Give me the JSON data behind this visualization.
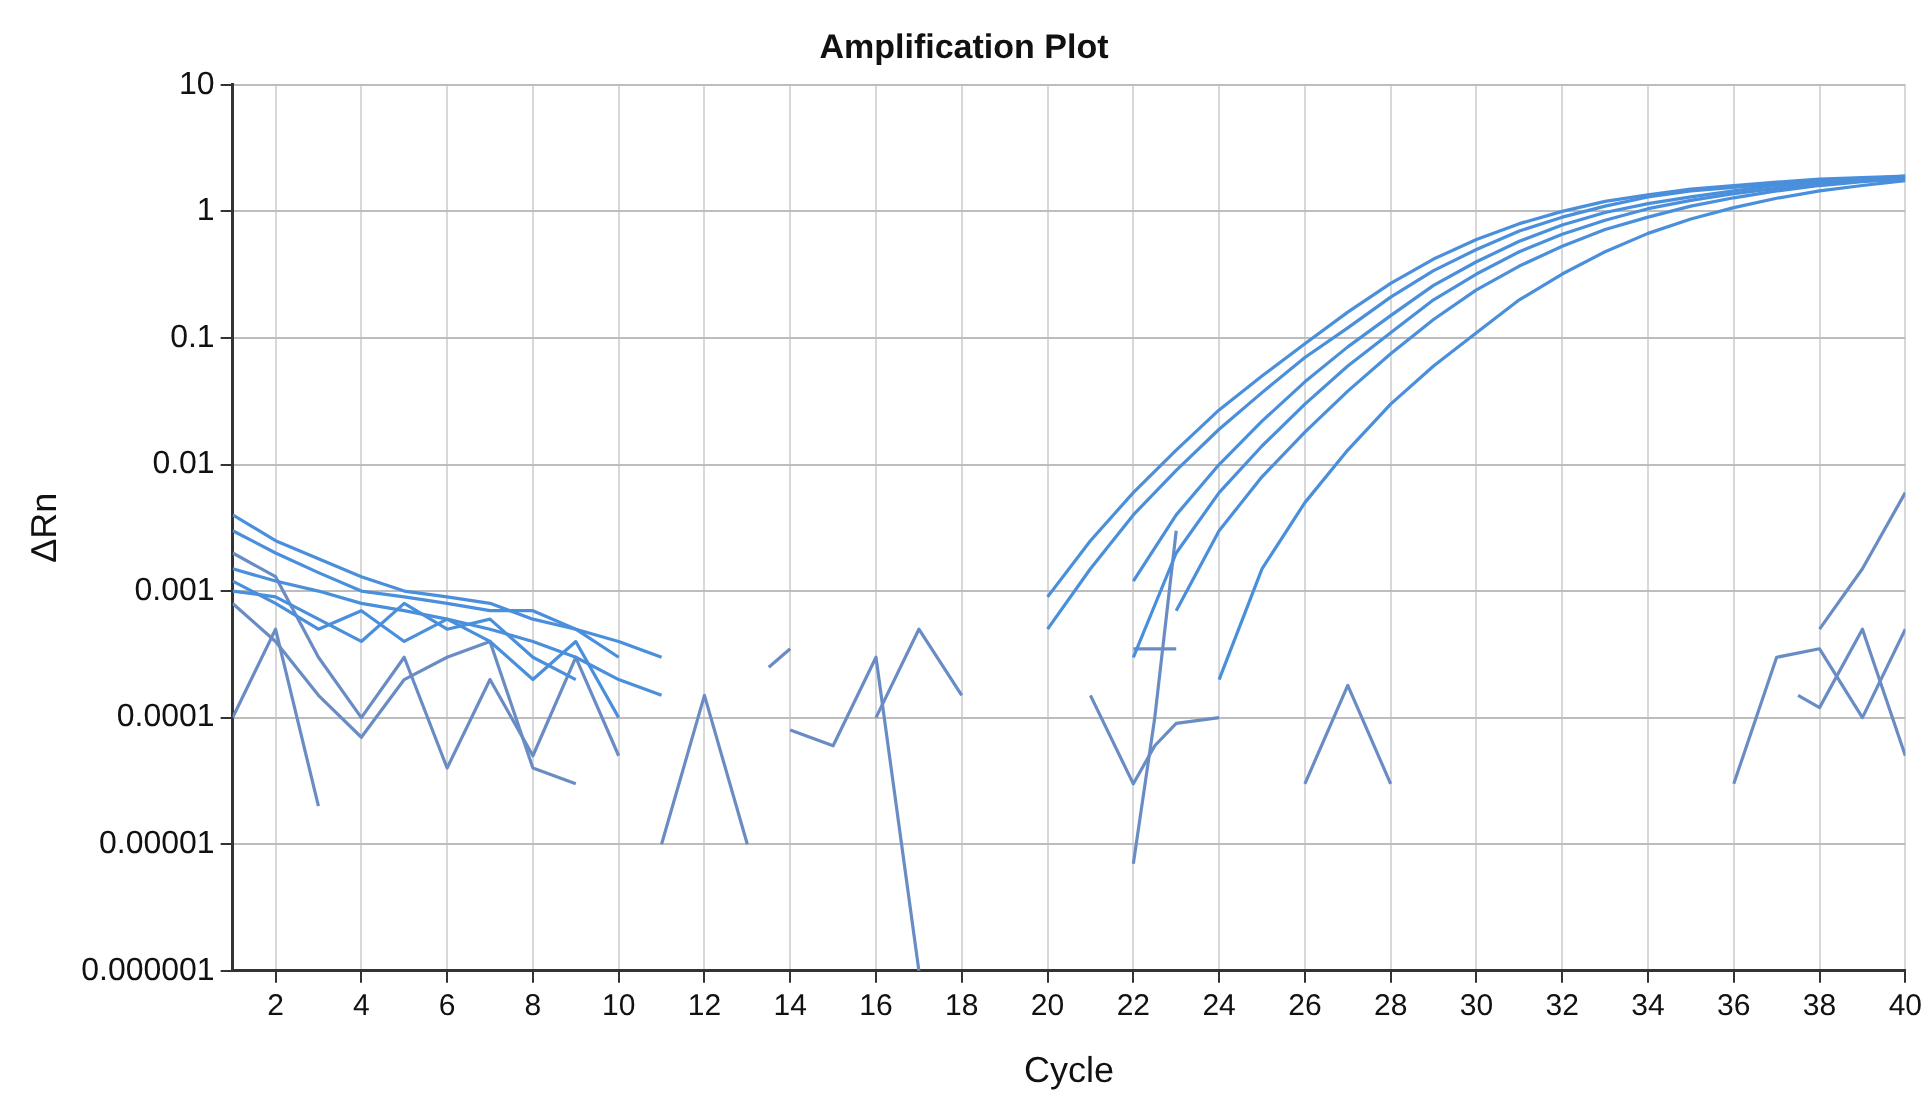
{
  "chart_data": {
    "type": "line",
    "title": "Amplification Plot",
    "xlabel": "Cycle",
    "ylabel": "ΔRn",
    "log": "y",
    "grid": true,
    "legend": false,
    "marker": "none",
    "line_style": "solid",
    "xlim": [
      1,
      40
    ],
    "xticks": [
      2,
      4,
      6,
      8,
      10,
      12,
      14,
      16,
      18,
      20,
      22,
      24,
      26,
      28,
      30,
      32,
      34,
      36,
      38,
      40
    ],
    "ylim": [
      1e-06,
      10
    ],
    "yticks": [
      {
        "value": 1e-06,
        "label": "0.000001"
      },
      {
        "value": 1e-05,
        "label": "0.00001"
      },
      {
        "value": 0.0001,
        "label": "0.0001"
      },
      {
        "value": 0.001,
        "label": "0.001"
      },
      0.01,
      0.1,
      1,
      10
    ],
    "series": [
      {
        "color": "#4a8fdc",
        "x": [
          20,
          21,
          22,
          23,
          24,
          25,
          26,
          27,
          28,
          29,
          30,
          31,
          32,
          33,
          34,
          35,
          36,
          37,
          38,
          39,
          40
        ],
        "values": [
          0.0009,
          0.0025,
          0.006,
          0.013,
          0.027,
          0.05,
          0.09,
          0.16,
          0.27,
          0.42,
          0.6,
          0.8,
          1.0,
          1.2,
          1.35,
          1.5,
          1.6,
          1.7,
          1.8,
          1.85,
          1.9
        ]
      },
      {
        "color": "#4a8fdc",
        "x": [
          20,
          21,
          22,
          23,
          24,
          25,
          26,
          27,
          28,
          29,
          30,
          31,
          32,
          33,
          34,
          35,
          36,
          37,
          38,
          39,
          40
        ],
        "values": [
          0.0005,
          0.0015,
          0.004,
          0.009,
          0.019,
          0.037,
          0.07,
          0.12,
          0.21,
          0.34,
          0.5,
          0.7,
          0.9,
          1.1,
          1.3,
          1.45,
          1.55,
          1.65,
          1.75,
          1.8,
          1.9
        ]
      },
      {
        "color": "#4a8fdc",
        "x": [
          22,
          23,
          24,
          25,
          26,
          27,
          28,
          29,
          30,
          31,
          32,
          33,
          34,
          35,
          36,
          37,
          38,
          39,
          40
        ],
        "values": [
          0.0012,
          0.004,
          0.01,
          0.022,
          0.045,
          0.085,
          0.15,
          0.26,
          0.4,
          0.58,
          0.78,
          0.98,
          1.15,
          1.3,
          1.45,
          1.6,
          1.7,
          1.8,
          1.85
        ]
      },
      {
        "color": "#4a8fdc",
        "x": [
          22,
          23,
          24,
          25,
          26,
          27,
          28,
          29,
          30,
          31,
          32,
          33,
          34,
          35,
          36,
          37,
          38,
          39,
          40
        ],
        "values": [
          0.0003,
          0.002,
          0.006,
          0.014,
          0.03,
          0.06,
          0.11,
          0.2,
          0.32,
          0.48,
          0.66,
          0.85,
          1.05,
          1.22,
          1.38,
          1.52,
          1.65,
          1.75,
          1.85
        ]
      },
      {
        "color": "#4a8fdc",
        "x": [
          23,
          24,
          25,
          26,
          27,
          28,
          29,
          30,
          31,
          32,
          33,
          34,
          35,
          36,
          37,
          38,
          39,
          40
        ],
        "values": [
          0.0007,
          0.003,
          0.008,
          0.018,
          0.038,
          0.075,
          0.14,
          0.24,
          0.37,
          0.53,
          0.72,
          0.9,
          1.1,
          1.28,
          1.45,
          1.6,
          1.72,
          1.8
        ]
      },
      {
        "color": "#4a8fdc",
        "x": [
          24,
          25,
          26,
          27,
          28,
          29,
          30,
          31,
          32,
          33,
          34,
          35,
          36,
          37,
          38,
          39,
          40
        ],
        "values": [
          0.0002,
          0.0015,
          0.005,
          0.013,
          0.03,
          0.06,
          0.11,
          0.2,
          0.32,
          0.48,
          0.67,
          0.87,
          1.07,
          1.27,
          1.45,
          1.6,
          1.75
        ]
      },
      {
        "color": "#4a8fdc",
        "x": [
          1,
          2,
          3,
          4,
          5,
          6,
          7,
          8,
          9,
          10
        ],
        "values": [
          0.004,
          0.0025,
          0.0018,
          0.0013,
          0.001,
          0.0009,
          0.0008,
          0.0006,
          0.0005,
          0.0003
        ]
      },
      {
        "color": "#4a8fdc",
        "x": [
          1,
          2,
          3,
          4,
          5,
          6,
          7,
          8,
          9,
          10,
          11
        ],
        "values": [
          0.0015,
          0.0012,
          0.001,
          0.0008,
          0.0007,
          0.0006,
          0.0005,
          0.0004,
          0.0003,
          0.0002,
          0.00015
        ]
      },
      {
        "color": "#4a8fdc",
        "x": [
          1,
          2,
          3,
          4,
          5,
          6,
          7,
          8,
          9,
          10,
          11
        ],
        "values": [
          0.003,
          0.002,
          0.0014,
          0.001,
          0.0009,
          0.0008,
          0.0007,
          0.0007,
          0.0005,
          0.0004,
          0.0003
        ]
      },
      {
        "color": "#4a8fdc",
        "x": [
          1,
          2,
          3,
          4,
          5,
          6,
          7,
          8,
          9
        ],
        "values": [
          0.001,
          0.0009,
          0.0006,
          0.0004,
          0.0008,
          0.0005,
          0.0006,
          0.0003,
          0.0002
        ]
      },
      {
        "color": "#4a8fdc",
        "x": [
          1,
          2,
          3,
          4,
          5,
          6,
          7,
          8,
          9,
          10
        ],
        "values": [
          0.0012,
          0.0008,
          0.0005,
          0.0007,
          0.0004,
          0.0006,
          0.0004,
          0.0002,
          0.0004,
          0.0001
        ]
      },
      {
        "color": "#6a8cc4",
        "x": [
          1,
          2,
          3,
          4,
          5,
          6,
          7,
          8,
          9,
          10
        ],
        "values": [
          0.002,
          0.0013,
          0.0003,
          0.0001,
          0.0003,
          4e-05,
          0.0002,
          5e-05,
          0.0003,
          5e-05
        ]
      },
      {
        "color": "#6a8cc4",
        "x": [
          1,
          2,
          3
        ],
        "values": [
          0.0001,
          0.0005,
          2e-05
        ]
      },
      {
        "color": "#6a8cc4",
        "x": [
          1,
          2,
          3,
          4,
          5,
          6,
          7,
          8,
          9
        ],
        "values": [
          0.0008,
          0.0004,
          0.00015,
          7e-05,
          0.0002,
          0.0003,
          0.0004,
          4e-05,
          3e-05
        ]
      },
      {
        "color": "#6a8cc4",
        "x": [
          11,
          12,
          13
        ],
        "values": [
          1e-05,
          0.00015,
          1e-05
        ]
      },
      {
        "color": "#6a8cc4",
        "x": [
          14,
          15,
          16,
          17
        ],
        "values": [
          8e-05,
          6e-05,
          0.0003,
          1e-06
        ]
      },
      {
        "color": "#6a8cc4",
        "x": [
          13.5,
          14
        ],
        "values": [
          0.00025,
          0.00035
        ]
      },
      {
        "color": "#6a8cc4",
        "x": [
          16,
          17,
          18
        ],
        "values": [
          0.0001,
          0.0005,
          0.00015
        ]
      },
      {
        "color": "#6a8cc4",
        "x": [
          21,
          22,
          22.5,
          23,
          24
        ],
        "values": [
          0.00015,
          3e-05,
          6e-05,
          9e-05,
          0.0001
        ]
      },
      {
        "color": "#6a8cc4",
        "x": [
          22,
          22.5,
          23
        ],
        "values": [
          7e-06,
          0.0001,
          0.003
        ]
      },
      {
        "color": "#6a8cc4",
        "x": [
          22,
          23
        ],
        "values": [
          0.00035,
          0.00035
        ]
      },
      {
        "color": "#6a8cc4",
        "x": [
          26,
          27,
          28
        ],
        "values": [
          3e-05,
          0.00018,
          3e-05
        ]
      },
      {
        "color": "#6a8cc4",
        "x": [
          36,
          37,
          38,
          39,
          40
        ],
        "values": [
          3e-05,
          0.0003,
          0.00035,
          0.0001,
          0.0005
        ]
      },
      {
        "color": "#6a8cc4",
        "x": [
          37.5,
          38,
          39,
          40
        ],
        "values": [
          0.00015,
          0.00012,
          0.0005,
          5e-05
        ]
      },
      {
        "color": "#6a8cc4",
        "x": [
          38,
          39,
          40
        ],
        "values": [
          0.0005,
          0.0015,
          0.006
        ]
      }
    ]
  }
}
